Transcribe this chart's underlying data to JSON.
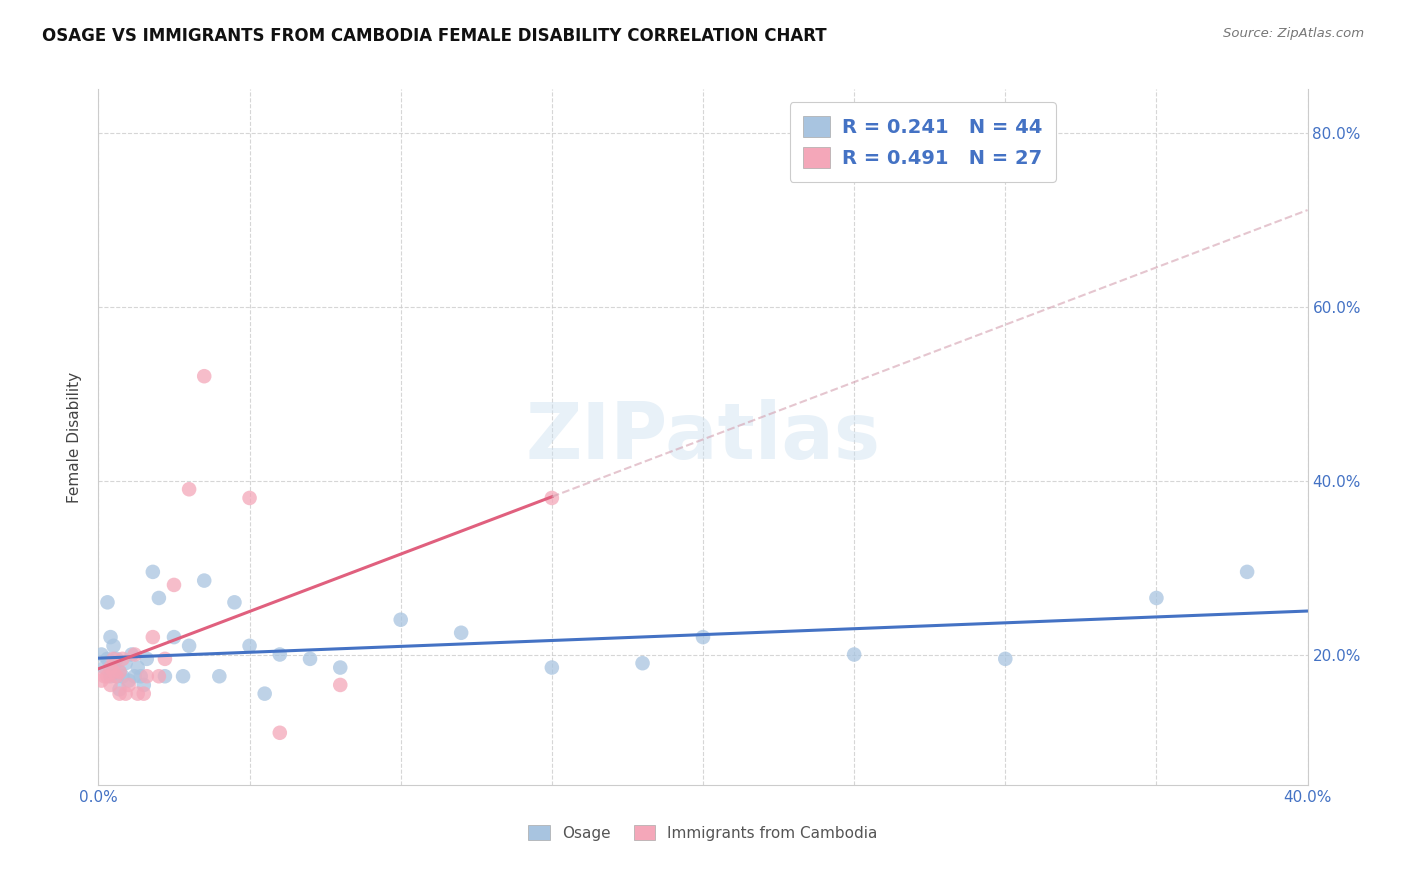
{
  "title": "OSAGE VS IMMIGRANTS FROM CAMBODIA FEMALE DISABILITY CORRELATION CHART",
  "source": "Source: ZipAtlas.com",
  "ylabel": "Female Disability",
  "xlim": [
    0.0,
    0.4
  ],
  "ylim": [
    0.05,
    0.85
  ],
  "xticks": [
    0.0,
    0.05,
    0.1,
    0.15,
    0.2,
    0.25,
    0.3,
    0.35,
    0.4
  ],
  "xtick_labels_show": [
    "0.0%",
    "",
    "",
    "",
    "",
    "",
    "",
    "",
    "40.0%"
  ],
  "yticks_right": [
    0.2,
    0.4,
    0.6,
    0.8
  ],
  "ytick_labels_right": [
    "20.0%",
    "40.0%",
    "60.0%",
    "80.0%"
  ],
  "osage_color": "#a8c4e0",
  "cambodia_color": "#f4a7b9",
  "osage_line_color": "#4472c4",
  "cambodia_line_color": "#e0607e",
  "cambodia_line_color_dashed": "#d4a0b0",
  "osage_R": 0.241,
  "osage_N": 44,
  "cambodia_R": 0.491,
  "cambodia_N": 27,
  "watermark": "ZIPatlas",
  "osage_x": [
    0.001,
    0.002,
    0.003,
    0.003,
    0.004,
    0.004,
    0.005,
    0.005,
    0.006,
    0.006,
    0.007,
    0.007,
    0.008,
    0.009,
    0.01,
    0.011,
    0.012,
    0.013,
    0.014,
    0.015,
    0.016,
    0.018,
    0.02,
    0.022,
    0.025,
    0.028,
    0.03,
    0.035,
    0.04,
    0.045,
    0.05,
    0.055,
    0.06,
    0.07,
    0.08,
    0.1,
    0.12,
    0.15,
    0.18,
    0.2,
    0.25,
    0.3,
    0.35,
    0.38
  ],
  "osage_y": [
    0.2,
    0.185,
    0.26,
    0.195,
    0.22,
    0.175,
    0.21,
    0.185,
    0.195,
    0.175,
    0.18,
    0.16,
    0.175,
    0.19,
    0.17,
    0.2,
    0.175,
    0.185,
    0.175,
    0.165,
    0.195,
    0.295,
    0.265,
    0.175,
    0.22,
    0.175,
    0.21,
    0.285,
    0.175,
    0.26,
    0.21,
    0.155,
    0.2,
    0.195,
    0.185,
    0.24,
    0.225,
    0.185,
    0.19,
    0.22,
    0.2,
    0.195,
    0.265,
    0.295
  ],
  "cambodia_x": [
    0.001,
    0.002,
    0.003,
    0.004,
    0.004,
    0.005,
    0.005,
    0.006,
    0.007,
    0.007,
    0.008,
    0.009,
    0.01,
    0.012,
    0.013,
    0.015,
    0.016,
    0.018,
    0.02,
    0.022,
    0.025,
    0.03,
    0.035,
    0.05,
    0.06,
    0.08,
    0.15
  ],
  "cambodia_y": [
    0.17,
    0.175,
    0.175,
    0.185,
    0.165,
    0.18,
    0.195,
    0.175,
    0.18,
    0.155,
    0.195,
    0.155,
    0.165,
    0.2,
    0.155,
    0.155,
    0.175,
    0.22,
    0.175,
    0.195,
    0.28,
    0.39,
    0.52,
    0.38,
    0.11,
    0.165,
    0.38
  ]
}
